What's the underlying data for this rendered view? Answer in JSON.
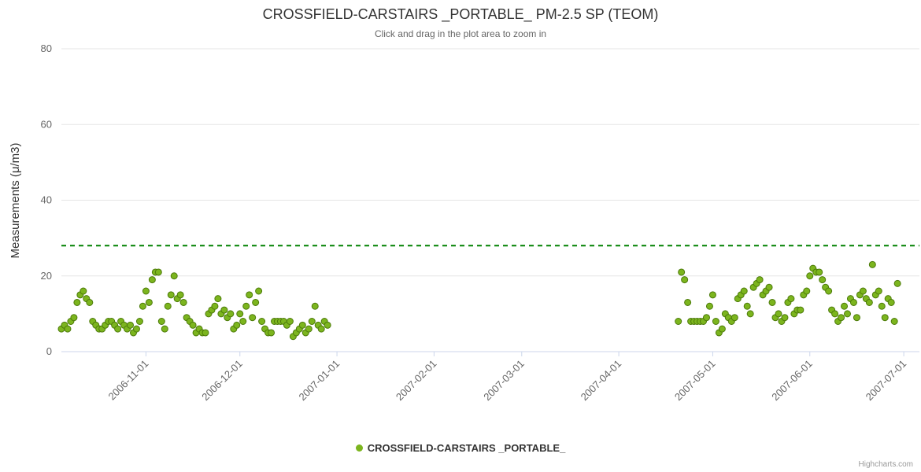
{
  "credits": "Highcharts.com",
  "chart_data": {
    "type": "scatter",
    "title": "CROSSFIELD-CARSTAIRS _PORTABLE_ PM-2.5 SP (TEOM)",
    "subtitle": "Click and drag in the plot area to zoom in",
    "xlabel": "",
    "ylabel": "Measurements (μ/m3)",
    "ylim": [
      0,
      80
    ],
    "y_ticks": [
      0,
      20,
      40,
      60,
      80
    ],
    "xlim": [
      "2006-10-05",
      "2007-07-06"
    ],
    "x_ticks": [
      "2006-11-01",
      "2006-12-01",
      "2007-01-01",
      "2007-02-01",
      "2007-03-01",
      "2007-04-01",
      "2007-05-01",
      "2007-06-01",
      "2007-07-01"
    ],
    "grid": "horizontal",
    "legend_position": "bottom-center",
    "plot_line": {
      "value": 28,
      "color": "#008000",
      "style": "dashed"
    },
    "series": [
      {
        "name": "CROSSFIELD-CARSTAIRS _PORTABLE_",
        "color": "#7cb51e",
        "border_color": "#4c7a0a",
        "points": [
          [
            "2006-10-05",
            6
          ],
          [
            "2006-10-06",
            7
          ],
          [
            "2006-10-07",
            6
          ],
          [
            "2006-10-08",
            8
          ],
          [
            "2006-10-09",
            9
          ],
          [
            "2006-10-10",
            13
          ],
          [
            "2006-10-11",
            15
          ],
          [
            "2006-10-12",
            16
          ],
          [
            "2006-10-13",
            14
          ],
          [
            "2006-10-14",
            13
          ],
          [
            "2006-10-15",
            8
          ],
          [
            "2006-10-16",
            7
          ],
          [
            "2006-10-17",
            6
          ],
          [
            "2006-10-18",
            6
          ],
          [
            "2006-10-19",
            7
          ],
          [
            "2006-10-20",
            8
          ],
          [
            "2006-10-21",
            8
          ],
          [
            "2006-10-22",
            7
          ],
          [
            "2006-10-23",
            6
          ],
          [
            "2006-10-24",
            8
          ],
          [
            "2006-10-25",
            7
          ],
          [
            "2006-10-26",
            6
          ],
          [
            "2006-10-27",
            7
          ],
          [
            "2006-10-28",
            5
          ],
          [
            "2006-10-29",
            6
          ],
          [
            "2006-10-30",
            8
          ],
          [
            "2006-10-31",
            12
          ],
          [
            "2006-11-01",
            16
          ],
          [
            "2006-11-02",
            13
          ],
          [
            "2006-11-03",
            19
          ],
          [
            "2006-11-04",
            21
          ],
          [
            "2006-11-05",
            21
          ],
          [
            "2006-11-06",
            8
          ],
          [
            "2006-11-07",
            6
          ],
          [
            "2006-11-08",
            12
          ],
          [
            "2006-11-09",
            15
          ],
          [
            "2006-11-10",
            20
          ],
          [
            "2006-11-11",
            14
          ],
          [
            "2006-11-12",
            15
          ],
          [
            "2006-11-13",
            13
          ],
          [
            "2006-11-14",
            9
          ],
          [
            "2006-11-15",
            8
          ],
          [
            "2006-11-16",
            7
          ],
          [
            "2006-11-17",
            5
          ],
          [
            "2006-11-18",
            6
          ],
          [
            "2006-11-19",
            5
          ],
          [
            "2006-11-20",
            5
          ],
          [
            "2006-11-21",
            10
          ],
          [
            "2006-11-22",
            11
          ],
          [
            "2006-11-23",
            12
          ],
          [
            "2006-11-24",
            14
          ],
          [
            "2006-11-25",
            10
          ],
          [
            "2006-11-26",
            11
          ],
          [
            "2006-11-27",
            9
          ],
          [
            "2006-11-28",
            10
          ],
          [
            "2006-11-29",
            6
          ],
          [
            "2006-11-30",
            7
          ],
          [
            "2006-12-01",
            10
          ],
          [
            "2006-12-02",
            8
          ],
          [
            "2006-12-03",
            12
          ],
          [
            "2006-12-04",
            15
          ],
          [
            "2006-12-05",
            9
          ],
          [
            "2006-12-06",
            13
          ],
          [
            "2006-12-07",
            16
          ],
          [
            "2006-12-08",
            8
          ],
          [
            "2006-12-09",
            6
          ],
          [
            "2006-12-10",
            5
          ],
          [
            "2006-12-11",
            5
          ],
          [
            "2006-12-12",
            8
          ],
          [
            "2006-12-13",
            8
          ],
          [
            "2006-12-14",
            8
          ],
          [
            "2006-12-15",
            8
          ],
          [
            "2006-12-16",
            7
          ],
          [
            "2006-12-17",
            8
          ],
          [
            "2006-12-18",
            4
          ],
          [
            "2006-12-19",
            5
          ],
          [
            "2006-12-20",
            6
          ],
          [
            "2006-12-21",
            7
          ],
          [
            "2006-12-22",
            5
          ],
          [
            "2006-12-23",
            6
          ],
          [
            "2006-12-24",
            8
          ],
          [
            "2006-12-25",
            12
          ],
          [
            "2006-12-26",
            7
          ],
          [
            "2006-12-27",
            6
          ],
          [
            "2006-12-28",
            8
          ],
          [
            "2006-12-29",
            7
          ],
          [
            "2007-04-20",
            8
          ],
          [
            "2007-04-21",
            21
          ],
          [
            "2007-04-22",
            19
          ],
          [
            "2007-04-23",
            13
          ],
          [
            "2007-04-24",
            8
          ],
          [
            "2007-04-25",
            8
          ],
          [
            "2007-04-26",
            8
          ],
          [
            "2007-04-27",
            8
          ],
          [
            "2007-04-28",
            8
          ],
          [
            "2007-04-29",
            9
          ],
          [
            "2007-04-30",
            12
          ],
          [
            "2007-05-01",
            15
          ],
          [
            "2007-05-02",
            8
          ],
          [
            "2007-05-03",
            5
          ],
          [
            "2007-05-04",
            6
          ],
          [
            "2007-05-05",
            10
          ],
          [
            "2007-05-06",
            9
          ],
          [
            "2007-05-07",
            8
          ],
          [
            "2007-05-08",
            9
          ],
          [
            "2007-05-09",
            14
          ],
          [
            "2007-05-10",
            15
          ],
          [
            "2007-05-11",
            16
          ],
          [
            "2007-05-12",
            12
          ],
          [
            "2007-05-13",
            10
          ],
          [
            "2007-05-14",
            17
          ],
          [
            "2007-05-15",
            18
          ],
          [
            "2007-05-16",
            19
          ],
          [
            "2007-05-17",
            15
          ],
          [
            "2007-05-18",
            16
          ],
          [
            "2007-05-19",
            17
          ],
          [
            "2007-05-20",
            13
          ],
          [
            "2007-05-21",
            9
          ],
          [
            "2007-05-22",
            10
          ],
          [
            "2007-05-23",
            8
          ],
          [
            "2007-05-24",
            9
          ],
          [
            "2007-05-25",
            13
          ],
          [
            "2007-05-26",
            14
          ],
          [
            "2007-05-27",
            10
          ],
          [
            "2007-05-28",
            11
          ],
          [
            "2007-05-29",
            11
          ],
          [
            "2007-05-30",
            15
          ],
          [
            "2007-05-31",
            16
          ],
          [
            "2007-06-01",
            20
          ],
          [
            "2007-06-02",
            22
          ],
          [
            "2007-06-03",
            21
          ],
          [
            "2007-06-04",
            21
          ],
          [
            "2007-06-05",
            19
          ],
          [
            "2007-06-06",
            17
          ],
          [
            "2007-06-07",
            16
          ],
          [
            "2007-06-08",
            11
          ],
          [
            "2007-06-09",
            10
          ],
          [
            "2007-06-10",
            8
          ],
          [
            "2007-06-11",
            9
          ],
          [
            "2007-06-12",
            12
          ],
          [
            "2007-06-13",
            10
          ],
          [
            "2007-06-14",
            14
          ],
          [
            "2007-06-15",
            13
          ],
          [
            "2007-06-16",
            9
          ],
          [
            "2007-06-17",
            15
          ],
          [
            "2007-06-18",
            16
          ],
          [
            "2007-06-19",
            14
          ],
          [
            "2007-06-20",
            13
          ],
          [
            "2007-06-21",
            23
          ],
          [
            "2007-06-22",
            15
          ],
          [
            "2007-06-23",
            16
          ],
          [
            "2007-06-24",
            12
          ],
          [
            "2007-06-25",
            9
          ],
          [
            "2007-06-26",
            14
          ],
          [
            "2007-06-27",
            13
          ],
          [
            "2007-06-28",
            8
          ],
          [
            "2007-06-29",
            18
          ]
        ]
      }
    ]
  }
}
